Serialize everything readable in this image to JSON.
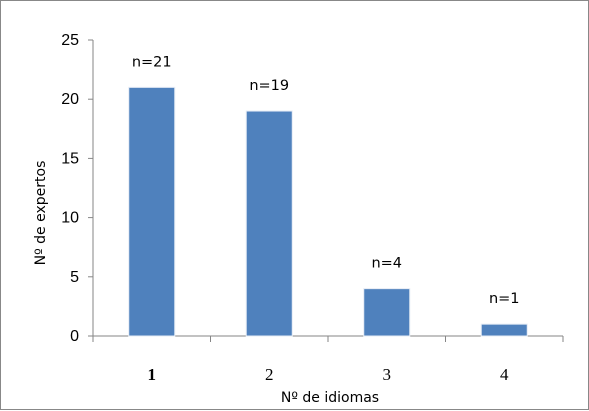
{
  "chart_data": {
    "type": "bar",
    "categories": [
      "1",
      "2",
      "3",
      "4"
    ],
    "values": [
      21,
      19,
      4,
      1
    ],
    "data_labels": [
      "n=21",
      "n=19",
      "n=4",
      "n=1"
    ],
    "title": "",
    "xlabel": "Nº de idiomas",
    "ylabel": "Nº de expertos",
    "ylim": [
      0,
      25
    ],
    "yticks": [
      0,
      5,
      10,
      15,
      20,
      25
    ],
    "grid": false,
    "legend": "none",
    "bar_color": "#4f81bd"
  }
}
